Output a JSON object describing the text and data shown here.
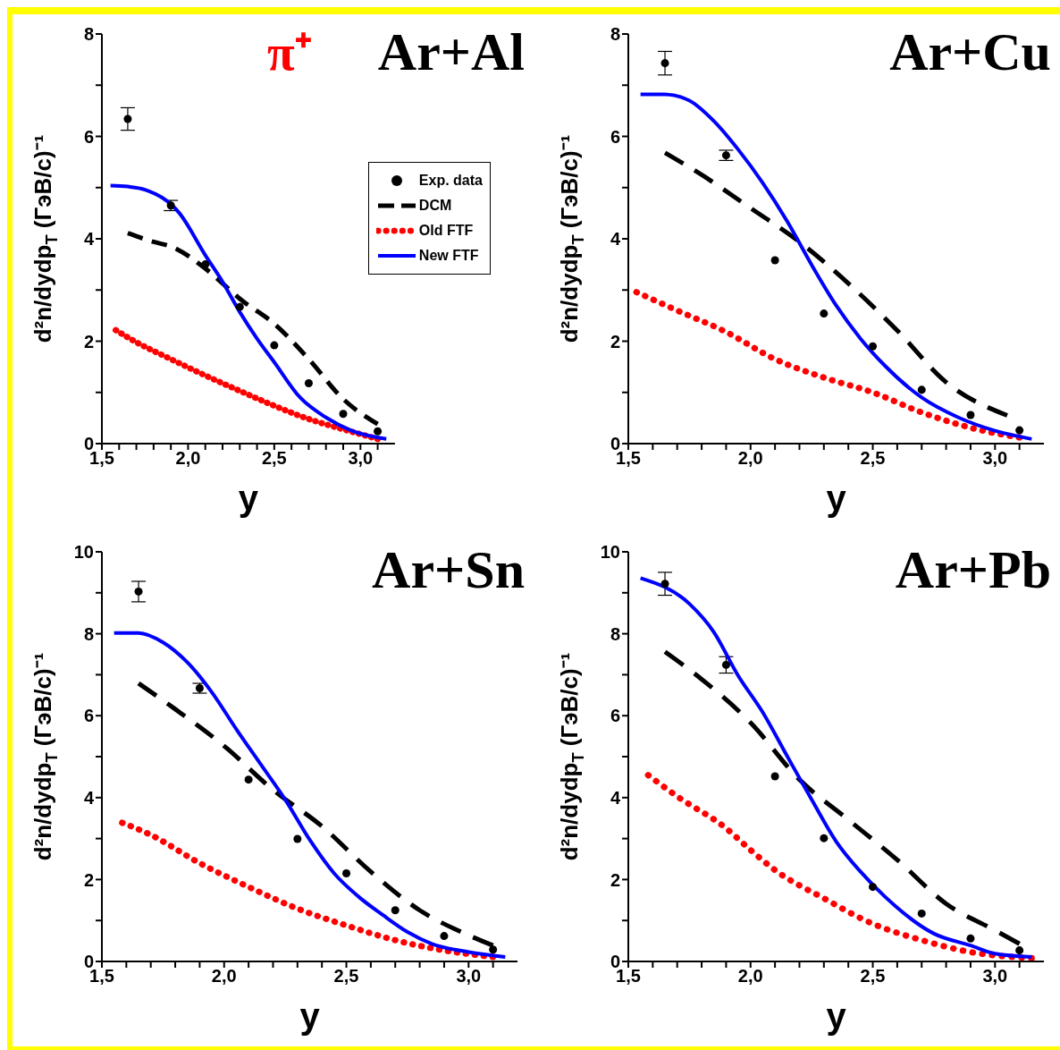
{
  "chart_data": [
    {
      "type": "line",
      "title": "Ar+Al",
      "annotations": [
        "π⁺"
      ],
      "xlabel": "y",
      "ylabel": "d²n/dydp$_{T}$ (ГэВ/с)⁻¹",
      "legend": "right",
      "xlim": [
        1.5,
        3.2
      ],
      "xticks": [
        {
          "value": 1.5,
          "label": "1,5"
        },
        {
          "value": 1.6,
          "label": null
        },
        {
          "value": 1.7,
          "label": null
        },
        {
          "value": 1.8,
          "label": null
        },
        {
          "value": 1.9,
          "label": null
        },
        {
          "value": 2.0,
          "label": "2,0"
        },
        {
          "value": 2.1,
          "label": null
        },
        {
          "value": 2.2,
          "label": null
        },
        {
          "value": 2.3,
          "label": null
        },
        {
          "value": 2.4,
          "label": null
        },
        {
          "value": 2.5,
          "label": "2,5"
        },
        {
          "value": 2.6,
          "label": null
        },
        {
          "value": 2.7,
          "label": null
        },
        {
          "value": 2.8,
          "label": null
        },
        {
          "value": 2.9,
          "label": null
        },
        {
          "value": 3.0,
          "label": "3,0"
        },
        {
          "value": 3.1,
          "label": null
        }
      ],
      "ylim": [
        0,
        8
      ],
      "yticks": [
        0,
        {
          "value": 1,
          "label": null
        },
        2,
        {
          "value": 3,
          "label": null
        },
        4,
        {
          "value": 5,
          "label": null
        },
        6,
        {
          "value": 7,
          "label": null
        },
        8
      ],
      "series": [
        {
          "name": "Exp. data",
          "type": "scatter",
          "marker": "circle",
          "color": "#000000",
          "x": [
            1.65,
            1.9,
            2.1,
            2.3,
            2.5,
            2.7,
            2.9,
            3.1
          ],
          "values": [
            6.34,
            4.65,
            3.5,
            2.67,
            1.92,
            1.18,
            0.58,
            0.24
          ],
          "errors": [
            0.22,
            0.1,
            null,
            null,
            null,
            null,
            null,
            null
          ]
        },
        {
          "name": "DCM",
          "type": "line",
          "line_style": "dashed",
          "marker": "none",
          "color": "#000000",
          "x": [
            1.65,
            1.8,
            1.9,
            2.1,
            2.2,
            2.3,
            2.5,
            2.7,
            2.9,
            3.1
          ],
          "values": [
            4.11,
            3.94,
            3.85,
            3.42,
            3.13,
            2.83,
            2.34,
            1.65,
            0.87,
            0.38
          ]
        },
        {
          "name": "Old FTF",
          "type": "line",
          "line_style": "dotted",
          "marker": "none",
          "color": "#ff0000",
          "x": [
            1.55,
            1.7,
            1.9,
            2.1,
            2.3,
            2.5,
            2.7,
            2.9,
            3.1
          ],
          "values": [
            2.28,
            1.98,
            1.65,
            1.33,
            1.03,
            0.74,
            0.48,
            0.28,
            0.09
          ]
        },
        {
          "name": "New FTF",
          "type": "line",
          "line_style": "solid",
          "marker": "none",
          "color": "#0000ff",
          "x": [
            1.55,
            1.65,
            1.75,
            1.95,
            2.1,
            2.2,
            2.3,
            2.4,
            2.5,
            2.65,
            2.8,
            2.95,
            3.15
          ],
          "values": [
            5.04,
            5.02,
            4.96,
            4.5,
            3.68,
            3.16,
            2.57,
            2.05,
            1.59,
            0.9,
            0.51,
            0.25,
            0.09
          ]
        }
      ]
    },
    {
      "type": "line",
      "title": "Ar+Cu",
      "xlabel": "y",
      "ylabel": "d²n/dydp$_{T}$ (ГэВ/с)⁻¹",
      "xlim": [
        1.5,
        3.2
      ],
      "xticks": [
        {
          "value": 1.5,
          "label": "1,5"
        },
        {
          "value": 1.6,
          "label": null
        },
        {
          "value": 1.7,
          "label": null
        },
        {
          "value": 1.8,
          "label": null
        },
        {
          "value": 1.9,
          "label": null
        },
        {
          "value": 2.0,
          "label": "2,0"
        },
        {
          "value": 2.1,
          "label": null
        },
        {
          "value": 2.2,
          "label": null
        },
        {
          "value": 2.3,
          "label": null
        },
        {
          "value": 2.4,
          "label": null
        },
        {
          "value": 2.5,
          "label": "2,5"
        },
        {
          "value": 2.6,
          "label": null
        },
        {
          "value": 2.7,
          "label": null
        },
        {
          "value": 2.8,
          "label": null
        },
        {
          "value": 2.9,
          "label": null
        },
        {
          "value": 3.0,
          "label": "3,0"
        },
        {
          "value": 3.1,
          "label": null
        }
      ],
      "ylim": [
        0,
        8
      ],
      "yticks": [
        0,
        {
          "value": 1,
          "label": null
        },
        2,
        {
          "value": 3,
          "label": null
        },
        4,
        {
          "value": 5,
          "label": null
        },
        6,
        {
          "value": 7,
          "label": null
        },
        8
      ],
      "series": [
        {
          "type": "scatter",
          "marker": "circle",
          "color": "#000000",
          "x": [
            1.65,
            1.9,
            2.1,
            2.3,
            2.5,
            2.7,
            2.9,
            3.1
          ],
          "values": [
            7.43,
            5.63,
            3.58,
            2.54,
            1.9,
            1.05,
            0.56,
            0.26
          ],
          "errors": [
            0.23,
            0.1,
            null,
            null,
            null,
            null,
            null,
            null
          ]
        },
        {
          "type": "line",
          "line_style": "dashed",
          "marker": "none",
          "color": "#000000",
          "x": [
            1.65,
            1.8,
            2.0,
            2.2,
            2.4,
            2.6,
            2.8,
            3.05
          ],
          "values": [
            5.68,
            5.25,
            4.6,
            3.94,
            3.13,
            2.21,
            1.2,
            0.55
          ]
        },
        {
          "type": "line",
          "line_style": "dotted",
          "marker": "none",
          "color": "#ff0000",
          "x": [
            1.5,
            1.7,
            1.9,
            2.1,
            2.3,
            2.5,
            2.7,
            2.9,
            3.1
          ],
          "values": [
            3.03,
            2.6,
            2.18,
            1.65,
            1.29,
            1.0,
            0.61,
            0.31,
            0.12
          ]
        },
        {
          "type": "line",
          "line_style": "solid",
          "marker": "none",
          "color": "#0000ff",
          "x": [
            1.55,
            1.65,
            1.75,
            1.85,
            1.95,
            2.05,
            2.15,
            2.25,
            2.35,
            2.45,
            2.55,
            2.7,
            2.85,
            3.0,
            3.15
          ],
          "values": [
            6.82,
            6.82,
            6.7,
            6.3,
            5.74,
            5.09,
            4.34,
            3.49,
            2.7,
            2.05,
            1.52,
            0.9,
            0.51,
            0.25,
            0.09
          ]
        }
      ]
    },
    {
      "type": "line",
      "title": "Ar+Sn",
      "xlabel": "y",
      "ylabel": "d²n/dydp$_{T}$ (ГэВ/с)⁻¹",
      "xlim": [
        1.5,
        3.2
      ],
      "xticks": [
        {
          "value": 1.5,
          "label": "1,5"
        },
        {
          "value": 1.6,
          "label": null
        },
        {
          "value": 1.7,
          "label": null
        },
        {
          "value": 1.8,
          "label": null
        },
        {
          "value": 1.9,
          "label": null
        },
        {
          "value": 2.0,
          "label": "2,0"
        },
        {
          "value": 2.1,
          "label": null
        },
        {
          "value": 2.2,
          "label": null
        },
        {
          "value": 2.3,
          "label": null
        },
        {
          "value": 2.4,
          "label": null
        },
        {
          "value": 2.5,
          "label": "2,5"
        },
        {
          "value": 2.6,
          "label": null
        },
        {
          "value": 2.7,
          "label": null
        },
        {
          "value": 2.8,
          "label": null
        },
        {
          "value": 2.9,
          "label": null
        },
        {
          "value": 3.0,
          "label": "3,0"
        },
        {
          "value": 3.1,
          "label": null
        }
      ],
      "ylim": [
        0,
        10
      ],
      "yticks": [
        0,
        {
          "value": 1,
          "label": null
        },
        2,
        {
          "value": 3,
          "label": null
        },
        4,
        {
          "value": 5,
          "label": null
        },
        6,
        {
          "value": 7,
          "label": null
        },
        8,
        {
          "value": 9,
          "label": null
        },
        10
      ],
      "series": [
        {
          "type": "scatter",
          "marker": "circle",
          "color": "#000000",
          "x": [
            1.65,
            1.9,
            2.1,
            2.3,
            2.5,
            2.7,
            2.9,
            3.1
          ],
          "values": [
            9.03,
            6.67,
            4.44,
            2.99,
            2.15,
            1.25,
            0.62,
            0.29
          ],
          "errors": [
            0.25,
            0.12,
            null,
            null,
            null,
            null,
            null,
            null
          ]
        },
        {
          "type": "line",
          "line_style": "dashed",
          "marker": "none",
          "color": "#000000",
          "x": [
            1.65,
            1.8,
            2.0,
            2.2,
            2.4,
            2.6,
            2.8,
            3.0,
            3.1
          ],
          "values": [
            6.79,
            6.16,
            5.26,
            4.19,
            3.3,
            2.19,
            1.25,
            0.64,
            0.39
          ]
        },
        {
          "type": "line",
          "line_style": "dotted",
          "marker": "none",
          "color": "#ff0000",
          "x": [
            1.55,
            1.7,
            1.9,
            2.1,
            2.3,
            2.5,
            2.7,
            2.9,
            3.1
          ],
          "values": [
            3.46,
            3.09,
            2.4,
            1.82,
            1.29,
            0.88,
            0.52,
            0.27,
            0.11
          ]
        },
        {
          "type": "line",
          "line_style": "solid",
          "marker": "none",
          "color": "#0000ff",
          "x": [
            1.55,
            1.65,
            1.75,
            1.85,
            1.95,
            2.05,
            2.15,
            2.25,
            2.35,
            2.45,
            2.55,
            2.65,
            2.75,
            2.85,
            3.0,
            3.15
          ],
          "values": [
            8.02,
            8.02,
            7.79,
            7.3,
            6.57,
            5.67,
            4.81,
            3.95,
            2.97,
            2.15,
            1.58,
            1.13,
            0.72,
            0.43,
            0.23,
            0.11
          ]
        }
      ]
    },
    {
      "type": "line",
      "title": "Ar+Pb",
      "xlabel": "y",
      "ylabel": "d²n/dydp$_{T}$ (ГэВ/с)⁻¹",
      "xlim": [
        1.5,
        3.2
      ],
      "xticks": [
        {
          "value": 1.5,
          "label": "1,5"
        },
        {
          "value": 1.6,
          "label": null
        },
        {
          "value": 1.7,
          "label": null
        },
        {
          "value": 1.8,
          "label": null
        },
        {
          "value": 1.9,
          "label": null
        },
        {
          "value": 2.0,
          "label": "2,0"
        },
        {
          "value": 2.1,
          "label": null
        },
        {
          "value": 2.2,
          "label": null
        },
        {
          "value": 2.3,
          "label": null
        },
        {
          "value": 2.4,
          "label": null
        },
        {
          "value": 2.5,
          "label": "2,5"
        },
        {
          "value": 2.6,
          "label": null
        },
        {
          "value": 2.7,
          "label": null
        },
        {
          "value": 2.8,
          "label": null
        },
        {
          "value": 2.9,
          "label": null
        },
        {
          "value": 3.0,
          "label": "3,0"
        },
        {
          "value": 3.1,
          "label": null
        }
      ],
      "ylim": [
        0,
        10
      ],
      "yticks": [
        0,
        {
          "value": 1,
          "label": null
        },
        2,
        {
          "value": 3,
          "label": null
        },
        4,
        {
          "value": 5,
          "label": null
        },
        6,
        {
          "value": 7,
          "label": null
        },
        8,
        {
          "value": 9,
          "label": null
        },
        10
      ],
      "series": [
        {
          "type": "scatter",
          "marker": "circle",
          "color": "#000000",
          "x": [
            1.65,
            1.9,
            2.1,
            2.3,
            2.5,
            2.7,
            2.9,
            3.1
          ],
          "values": [
            9.22,
            7.24,
            4.52,
            3.01,
            1.82,
            1.17,
            0.56,
            0.27
          ],
          "errors": [
            0.28,
            0.2,
            null,
            null,
            null,
            null,
            null,
            null
          ]
        },
        {
          "type": "line",
          "line_style": "dashed",
          "marker": "none",
          "color": "#000000",
          "x": [
            1.65,
            1.8,
            2.0,
            2.2,
            2.4,
            2.6,
            2.8,
            3.0,
            3.1
          ],
          "values": [
            7.56,
            6.89,
            5.83,
            4.44,
            3.46,
            2.48,
            1.41,
            0.76,
            0.43
          ]
        },
        {
          "type": "line",
          "line_style": "dotted",
          "marker": "none",
          "color": "#ff0000",
          "x": [
            1.55,
            1.7,
            1.9,
            2.0,
            2.1,
            2.3,
            2.5,
            2.7,
            2.9,
            3.15
          ],
          "values": [
            4.69,
            4.03,
            3.25,
            2.72,
            2.23,
            1.54,
            0.92,
            0.52,
            0.23,
            0.08
          ]
        },
        {
          "type": "line",
          "line_style": "solid",
          "marker": "none",
          "color": "#0000ff",
          "x": [
            1.55,
            1.75,
            1.85,
            1.95,
            2.05,
            2.15,
            2.25,
            2.35,
            2.45,
            2.55,
            2.75,
            2.9,
            3.0,
            3.15
          ],
          "values": [
            9.36,
            8.73,
            8.04,
            6.97,
            6.08,
            5.01,
            3.95,
            2.93,
            2.19,
            1.58,
            0.68,
            0.39,
            0.19,
            0.11
          ]
        }
      ]
    }
  ]
}
